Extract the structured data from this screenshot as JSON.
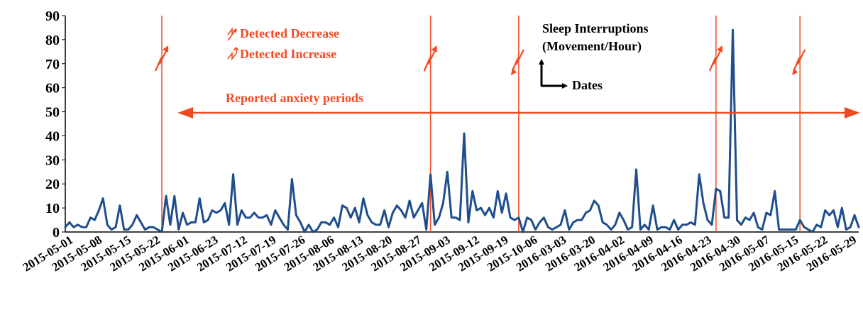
{
  "colors": {
    "series": "#1f4e8c",
    "accent": "#f04a22",
    "axis": "#000000"
  },
  "annotations": {
    "legend_decrease": "Detected Decrease",
    "legend_increase": "Detected Increase",
    "series_label_line1": "Sleep Interruptions",
    "series_label_line2": "(Movement/Hour)",
    "dates_label": "Dates",
    "period_label": "Reported anxiety periods"
  },
  "chart_data": {
    "type": "line",
    "title": "",
    "xlabel": "Dates",
    "ylabel": "Sleep Interruptions (Movement/Hour)",
    "ylim": [
      0,
      90
    ],
    "yticks": [
      0,
      10,
      20,
      30,
      40,
      50,
      60,
      70,
      80,
      90
    ],
    "grid": false,
    "x_tick_labels": [
      "2015-05-01",
      "2015-05-08",
      "2015-05-15",
      "2015-05-22",
      "2015-06-01",
      "2015-06-23",
      "2015-07-12",
      "2015-07-19",
      "2015-07-26",
      "2015-08-06",
      "2015-08-13",
      "2015-08-20",
      "2015-08-27",
      "2015-09-03",
      "2015-09-12",
      "2015-09-19",
      "2015-10-06",
      "2016-03-03",
      "2016-03-20",
      "2016-04-02",
      "2016-04-09",
      "2016-04-16",
      "2016-04-23",
      "2016-04-30",
      "2016-05-07",
      "2016-05-15",
      "2016-05-22",
      "2016-05-29"
    ],
    "series": [
      {
        "values": [
          2,
          4,
          2,
          3,
          2,
          2,
          6,
          5,
          9,
          14,
          3,
          1,
          2,
          11,
          1,
          1,
          3,
          7,
          4,
          1,
          2,
          2,
          1,
          0,
          15,
          3,
          15,
          1,
          8,
          3,
          4,
          4,
          14,
          4,
          5,
          9,
          8,
          9,
          12,
          3,
          24,
          3,
          9,
          6,
          6,
          8,
          6,
          6,
          7,
          3,
          9,
          6,
          3,
          1,
          22,
          7,
          4,
          0,
          3,
          0,
          1,
          4,
          4,
          3,
          6,
          2,
          11,
          10,
          6,
          10,
          4,
          14,
          7,
          4,
          3,
          3,
          9,
          2,
          8,
          11,
          9,
          6,
          13,
          6,
          9,
          12,
          1,
          24,
          3,
          6,
          12,
          25,
          6,
          6,
          5,
          41,
          4,
          17,
          9,
          10,
          7,
          10,
          6,
          17,
          8,
          16,
          6,
          5,
          6,
          0,
          6,
          5,
          1,
          4,
          6,
          2,
          1,
          2,
          3,
          9,
          1,
          4,
          5,
          5,
          8,
          9,
          13,
          11,
          4,
          3,
          1,
          3,
          8,
          5,
          1,
          2,
          26,
          1,
          3,
          1,
          11,
          1,
          2,
          2,
          1,
          5,
          1,
          3,
          3,
          4,
          3,
          24,
          12,
          5,
          3,
          18,
          17,
          6,
          6,
          84,
          5,
          3,
          6,
          5,
          8,
          2,
          1,
          8,
          7,
          17,
          1,
          1,
          1,
          1,
          1,
          5,
          2,
          1,
          0,
          3,
          2,
          9,
          7,
          9,
          2,
          10,
          1,
          2,
          7,
          2
        ]
      }
    ],
    "vertical_markers": [
      {
        "index": 23,
        "direction": "increase"
      },
      {
        "index": 87,
        "direction": "increase"
      },
      {
        "index": 108,
        "direction": "decrease"
      },
      {
        "index": 155,
        "direction": "increase"
      },
      {
        "index": 175,
        "direction": "decrease"
      }
    ],
    "anxiety_period": {
      "start_index": 23,
      "end_index": 190
    }
  }
}
